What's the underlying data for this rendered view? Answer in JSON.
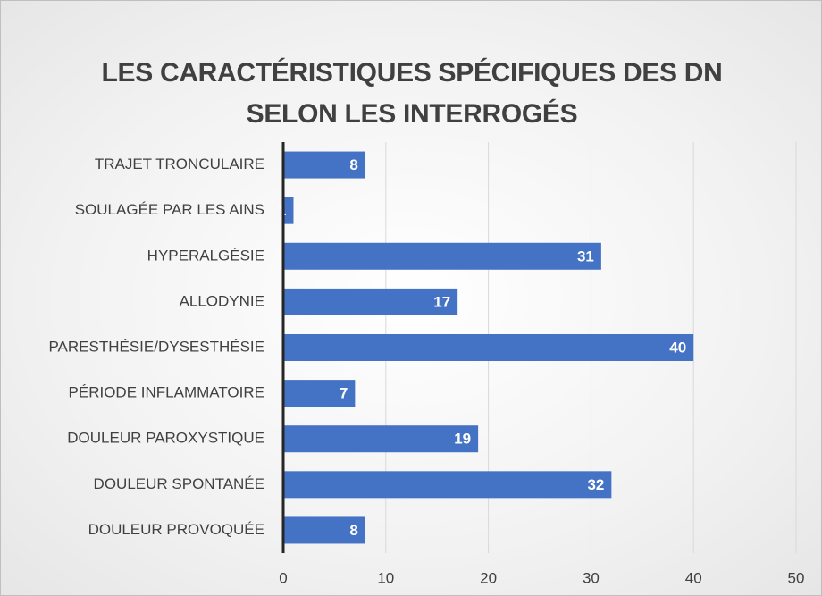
{
  "chart_data": {
    "type": "bar",
    "orientation": "horizontal",
    "title": "LES CARACTÉRISTIQUES SPÉCIFIQUES DES DN SELON LES INTERROGÉS",
    "categories": [
      "TRAJET TRONCULAIRE",
      "SOULAGÉE PAR LES AINS",
      "HYPERALGÉSIE",
      "ALLODYNIE",
      "PARESTHÉSIE/DYSESTHÉSIE",
      "PÉRIODE INFLAMMATOIRE",
      "DOULEUR PAROXYSTIQUE",
      "DOULEUR SPONTANÉE",
      "DOULEUR PROVOQUÉE"
    ],
    "values": [
      8,
      1,
      31,
      17,
      40,
      7,
      19,
      32,
      8
    ],
    "color": "#4472c4",
    "xlim": [
      0,
      50
    ],
    "xticks": [
      0,
      10,
      20,
      30,
      40,
      50
    ],
    "grid": true
  }
}
